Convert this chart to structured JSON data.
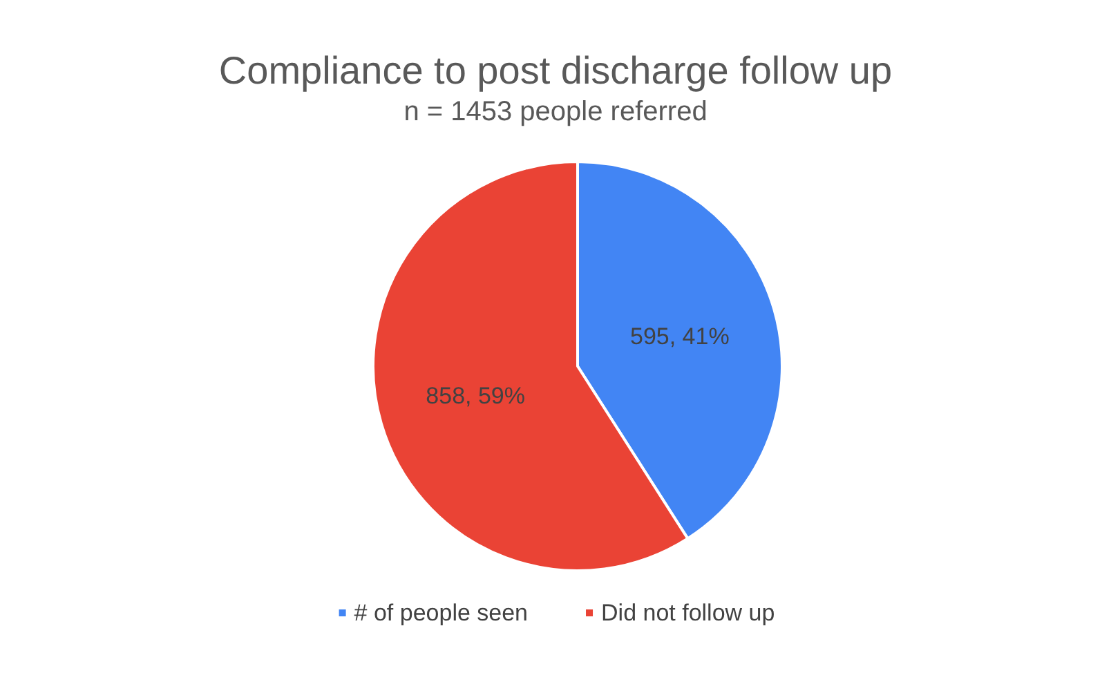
{
  "chart_data": {
    "type": "pie",
    "title": "Compliance to post discharge follow up",
    "subtitle": "n = 1453 people referred",
    "categories": [
      "# of people seen",
      "Did not follow up"
    ],
    "values": [
      595,
      858
    ],
    "colors": [
      "#4285f4",
      "#ea4335"
    ],
    "value_labels": [
      "595, 41%",
      "858, 59%"
    ],
    "legend": "bottom"
  }
}
